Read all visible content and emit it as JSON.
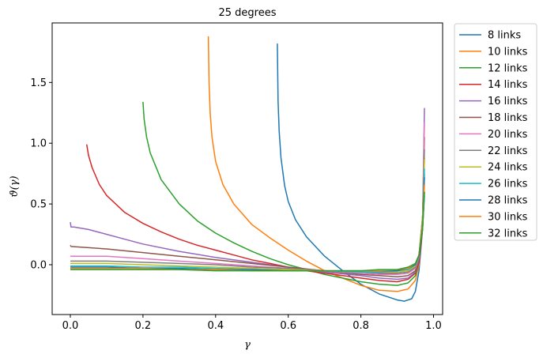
{
  "chart_data": {
    "type": "line",
    "title": "25 degrees",
    "xlabel": "γ",
    "ylabel": "ϑ(γ)",
    "xlim": [
      -0.05,
      1.025
    ],
    "ylim": [
      -0.41,
      1.99
    ],
    "xticks": [
      0.0,
      0.2,
      0.4,
      0.6,
      0.8,
      1.0
    ],
    "xtick_labels": [
      "0.0",
      "0.2",
      "0.4",
      "0.6",
      "0.8",
      "1.0"
    ],
    "yticks": [
      0.0,
      0.5,
      1.0,
      1.5
    ],
    "ytick_labels": [
      "0.0",
      "0.5",
      "1.0",
      "1.5"
    ],
    "grid": false,
    "legend_position": "outside-upper-right",
    "series": [
      {
        "name": "8 links",
        "color": "#1f77b4",
        "x": [
          0.57,
          0.572,
          0.575,
          0.58,
          0.59,
          0.6,
          0.62,
          0.65,
          0.7,
          0.75,
          0.8,
          0.85,
          0.9,
          0.92,
          0.94,
          0.95,
          0.96,
          0.97,
          0.975
        ],
        "y": [
          1.82,
          1.35,
          1.1,
          0.88,
          0.65,
          0.52,
          0.37,
          0.23,
          0.07,
          -0.05,
          -0.16,
          -0.24,
          -0.29,
          -0.3,
          -0.28,
          -0.22,
          -0.05,
          0.3,
          0.57
        ]
      },
      {
        "name": "10 links",
        "color": "#ff7f0e",
        "x": [
          0.38,
          0.382,
          0.385,
          0.39,
          0.4,
          0.42,
          0.45,
          0.5,
          0.55,
          0.6,
          0.65,
          0.7,
          0.75,
          0.8,
          0.85,
          0.9,
          0.93,
          0.95,
          0.96,
          0.97,
          0.975
        ],
        "y": [
          1.88,
          1.5,
          1.25,
          1.05,
          0.85,
          0.66,
          0.5,
          0.33,
          0.22,
          0.12,
          0.03,
          -0.05,
          -0.11,
          -0.17,
          -0.21,
          -0.22,
          -0.2,
          -0.13,
          0.0,
          0.35,
          0.88
        ]
      },
      {
        "name": "12 links",
        "color": "#2ca02c",
        "x": [
          0.2,
          0.203,
          0.21,
          0.22,
          0.25,
          0.3,
          0.35,
          0.4,
          0.45,
          0.5,
          0.55,
          0.6,
          0.65,
          0.7,
          0.75,
          0.8,
          0.85,
          0.9,
          0.93,
          0.95,
          0.96,
          0.97,
          0.975
        ],
        "y": [
          1.34,
          1.2,
          1.05,
          0.92,
          0.7,
          0.5,
          0.36,
          0.26,
          0.18,
          0.11,
          0.05,
          0.0,
          -0.04,
          -0.08,
          -0.11,
          -0.14,
          -0.16,
          -0.17,
          -0.15,
          -0.09,
          0.02,
          0.3,
          0.6
        ]
      },
      {
        "name": "14 links",
        "color": "#d62728",
        "x": [
          0.045,
          0.05,
          0.06,
          0.08,
          0.1,
          0.15,
          0.2,
          0.25,
          0.3,
          0.35,
          0.4,
          0.45,
          0.5,
          0.55,
          0.6,
          0.65,
          0.7,
          0.75,
          0.8,
          0.85,
          0.9,
          0.93,
          0.95,
          0.96,
          0.97,
          0.975
        ],
        "y": [
          0.99,
          0.9,
          0.8,
          0.66,
          0.57,
          0.43,
          0.34,
          0.27,
          0.21,
          0.16,
          0.12,
          0.08,
          0.04,
          0.01,
          -0.02,
          -0.05,
          -0.07,
          -0.09,
          -0.11,
          -0.13,
          -0.14,
          -0.12,
          -0.07,
          0.02,
          0.3,
          0.75
        ]
      },
      {
        "name": "16 links",
        "color": "#9467bd",
        "x": [
          0.0,
          0.002,
          0.01,
          0.05,
          0.1,
          0.15,
          0.2,
          0.3,
          0.4,
          0.5,
          0.6,
          0.7,
          0.8,
          0.85,
          0.9,
          0.93,
          0.95,
          0.96,
          0.97,
          0.975
        ],
        "y": [
          0.35,
          0.31,
          0.31,
          0.29,
          0.25,
          0.21,
          0.17,
          0.11,
          0.06,
          0.02,
          -0.02,
          -0.06,
          -0.09,
          -0.11,
          -0.12,
          -0.11,
          -0.06,
          0.04,
          0.4,
          1.29
        ]
      },
      {
        "name": "18 links",
        "color": "#8c564b",
        "x": [
          0.0,
          0.002,
          0.05,
          0.1,
          0.2,
          0.3,
          0.4,
          0.5,
          0.6,
          0.7,
          0.8,
          0.85,
          0.9,
          0.93,
          0.95,
          0.96,
          0.97,
          0.975
        ],
        "y": [
          0.16,
          0.15,
          0.14,
          0.13,
          0.1,
          0.07,
          0.04,
          0.01,
          -0.02,
          -0.05,
          -0.08,
          -0.09,
          -0.1,
          -0.09,
          -0.05,
          0.05,
          0.4,
          1.05
        ]
      },
      {
        "name": "20 links",
        "color": "#e377c2",
        "x": [
          0.0,
          0.1,
          0.2,
          0.3,
          0.4,
          0.5,
          0.6,
          0.7,
          0.8,
          0.85,
          0.9,
          0.93,
          0.95,
          0.96,
          0.97,
          0.975
        ],
        "y": [
          0.07,
          0.07,
          0.05,
          0.03,
          0.01,
          -0.01,
          -0.03,
          -0.05,
          -0.07,
          -0.08,
          -0.08,
          -0.07,
          -0.03,
          0.06,
          0.4,
          1.17
        ]
      },
      {
        "name": "22 links",
        "color": "#7f7f7f",
        "x": [
          0.0,
          0.1,
          0.2,
          0.3,
          0.4,
          0.5,
          0.6,
          0.7,
          0.8,
          0.85,
          0.9,
          0.93,
          0.95,
          0.96,
          0.97,
          0.975
        ],
        "y": [
          0.03,
          0.03,
          0.02,
          0.01,
          0.0,
          -0.02,
          -0.03,
          -0.05,
          -0.06,
          -0.07,
          -0.07,
          -0.06,
          -0.02,
          0.07,
          0.4,
          0.95
        ]
      },
      {
        "name": "24 links",
        "color": "#bcbd22",
        "x": [
          0.0,
          0.1,
          0.2,
          0.3,
          0.4,
          0.5,
          0.6,
          0.7,
          0.8,
          0.85,
          0.9,
          0.93,
          0.95,
          0.96,
          0.97,
          0.975
        ],
        "y": [
          0.01,
          0.01,
          0.0,
          -0.01,
          -0.02,
          -0.03,
          -0.04,
          -0.05,
          -0.06,
          -0.06,
          -0.06,
          -0.05,
          -0.01,
          0.08,
          0.4,
          0.87
        ]
      },
      {
        "name": "26 links",
        "color": "#17becf",
        "x": [
          0.0,
          0.1,
          0.2,
          0.3,
          0.4,
          0.5,
          0.6,
          0.7,
          0.8,
          0.85,
          0.9,
          0.93,
          0.95,
          0.96,
          0.97,
          0.975
        ],
        "y": [
          -0.01,
          -0.01,
          -0.02,
          -0.02,
          -0.03,
          -0.04,
          -0.05,
          -0.05,
          -0.06,
          -0.06,
          -0.05,
          -0.04,
          0.0,
          0.08,
          0.35,
          0.79
        ]
      },
      {
        "name": "28 links",
        "color": "#1f77b4",
        "x": [
          0.0,
          0.1,
          0.2,
          0.3,
          0.4,
          0.5,
          0.6,
          0.7,
          0.8,
          0.85,
          0.9,
          0.93,
          0.95,
          0.96,
          0.97,
          0.975
        ],
        "y": [
          -0.02,
          -0.02,
          -0.03,
          -0.03,
          -0.04,
          -0.04,
          -0.05,
          -0.05,
          -0.05,
          -0.05,
          -0.05,
          -0.03,
          0.0,
          0.08,
          0.35,
          0.72
        ]
      },
      {
        "name": "30 links",
        "color": "#ff7f0e",
        "x": [
          0.0,
          0.1,
          0.2,
          0.3,
          0.4,
          0.5,
          0.6,
          0.7,
          0.8,
          0.85,
          0.9,
          0.93,
          0.95,
          0.96,
          0.97,
          0.975
        ],
        "y": [
          -0.03,
          -0.03,
          -0.03,
          -0.04,
          -0.04,
          -0.05,
          -0.05,
          -0.05,
          -0.05,
          -0.05,
          -0.04,
          -0.03,
          0.01,
          0.08,
          0.33,
          0.66
        ]
      },
      {
        "name": "32 links",
        "color": "#2ca02c",
        "x": [
          0.0,
          0.1,
          0.2,
          0.3,
          0.4,
          0.5,
          0.6,
          0.7,
          0.8,
          0.85,
          0.9,
          0.93,
          0.95,
          0.96,
          0.97,
          0.975
        ],
        "y": [
          -0.04,
          -0.04,
          -0.04,
          -0.04,
          -0.05,
          -0.05,
          -0.05,
          -0.05,
          -0.05,
          -0.04,
          -0.04,
          -0.02,
          0.01,
          0.08,
          0.3,
          0.6
        ]
      }
    ]
  }
}
